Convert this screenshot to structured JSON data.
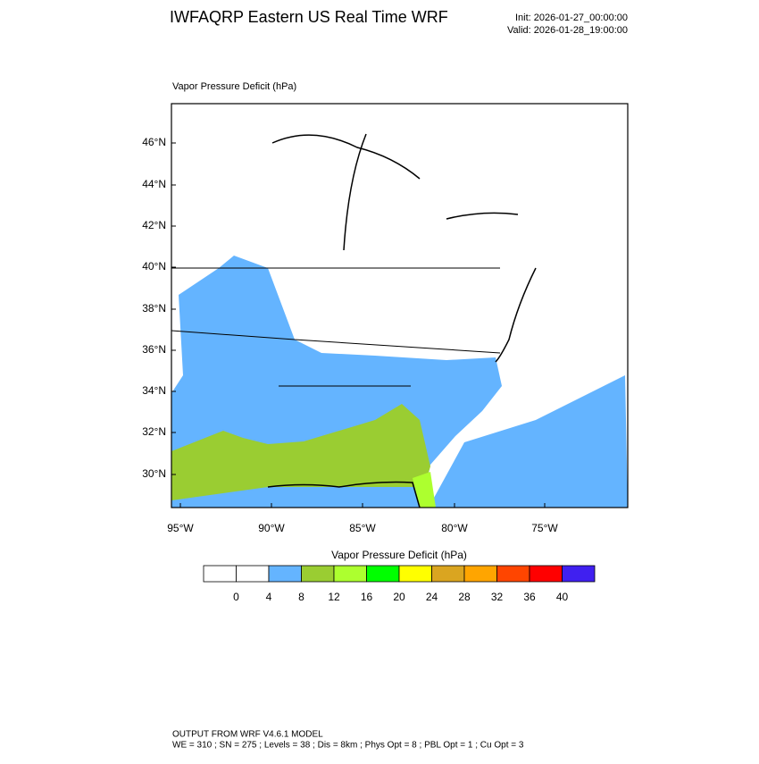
{
  "header": {
    "title": "IWFAQRP Eastern US Real Time WRF",
    "init": "Init: 2026-01-27_00:00:00",
    "valid": "Valid: 2026-01-28_19:00:00"
  },
  "map": {
    "title": "Vapor Pressure Deficit   (hPa)",
    "lat_labels": [
      "46°N",
      "44°N",
      "42°N",
      "40°N",
      "38°N",
      "36°N",
      "34°N",
      "32°N",
      "30°N"
    ],
    "lon_labels": [
      "95°W",
      "90°W",
      "85°W",
      "80°W",
      "75°W"
    ]
  },
  "colorbar": {
    "title": "Vapor Pressure Deficit  (hPa)",
    "colors": [
      "#ffffff",
      "#ffffff",
      "#64b4ff",
      "#9acd32",
      "#adff2f",
      "#00ff00",
      "#ffff00",
      "#daa520",
      "#ffa500",
      "#ff4500",
      "#ff0000",
      "#4020f0"
    ],
    "labels": [
      0,
      4,
      8,
      12,
      16,
      20,
      24,
      28,
      32,
      36,
      40
    ]
  },
  "footer": {
    "line1": "OUTPUT FROM WRF V4.6.1 MODEL",
    "line2": "WE = 310 ; SN = 275 ; Levels = 38 ; Dis = 8km ; Phys Opt = 8 ; PBL Opt = 1 ; Cu Opt = 3"
  }
}
